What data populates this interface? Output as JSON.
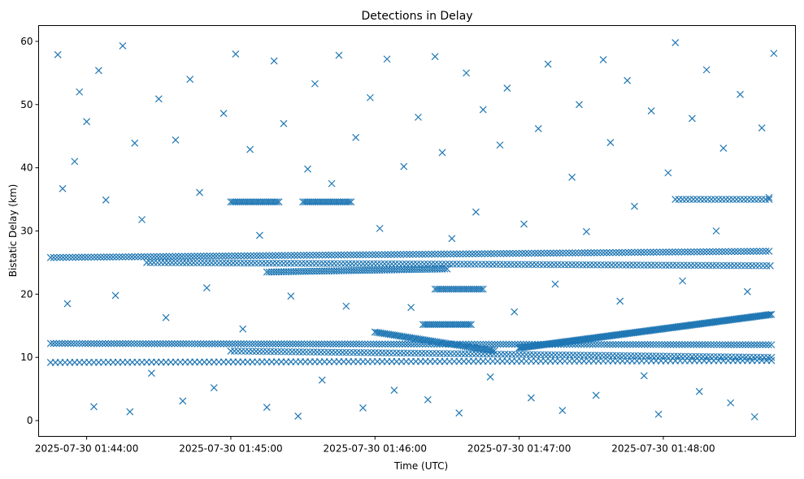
{
  "chart_data": {
    "type": "scatter",
    "title": "Detections in Delay",
    "xlabel": "Time (UTC)",
    "ylabel": "Bistatic Delay (km)",
    "marker": "x",
    "marker_color": "#1f77b4",
    "grid": false,
    "legend": "none",
    "x_ticks": [
      "2025-07-30 01:44:00",
      "2025-07-30 01:45:00",
      "2025-07-30 01:46:00",
      "2025-07-30 01:47:00",
      "2025-07-30 01:48:00"
    ],
    "y_ticks": [
      "0",
      "10",
      "20",
      "30",
      "40",
      "50",
      "60"
    ],
    "xlim": [
      "2025-07-30 01:43:40",
      "2025-07-30 01:48:55"
    ],
    "ylim": [
      -2.5,
      62.5
    ],
    "tracks": [
      {
        "start": "2025-07-30 01:43:45",
        "end": "2025-07-30 01:48:45",
        "y_start": 12.2,
        "y_end": 12.0,
        "step_seconds": 1.2
      },
      {
        "start": "2025-07-30 01:43:45",
        "end": "2025-07-30 01:48:45",
        "y_start": 25.8,
        "y_end": 26.8,
        "step_seconds": 1.3
      },
      {
        "start": "2025-07-30 01:43:45",
        "end": "2025-07-30 01:48:45",
        "y_start": 9.2,
        "y_end": 9.5,
        "step_seconds": 2.0
      },
      {
        "start": "2025-07-30 01:44:25",
        "end": "2025-07-30 01:48:45",
        "y_start": 25.0,
        "y_end": 24.5,
        "step_seconds": 1.5
      },
      {
        "start": "2025-07-30 01:45:00",
        "end": "2025-07-30 01:48:45",
        "y_start": 11.0,
        "y_end": 10.0,
        "step_seconds": 1.5
      },
      {
        "start": "2025-07-30 01:45:15",
        "end": "2025-07-30 01:46:30",
        "y_start": 23.5,
        "y_end": 24.0,
        "step_seconds": 1.0
      },
      {
        "start": "2025-07-30 01:46:00",
        "end": "2025-07-30 01:46:50",
        "y_start": 14.0,
        "y_end": 11.0,
        "step_seconds": 0.8
      },
      {
        "start": "2025-07-30 01:47:00",
        "end": "2025-07-30 01:48:45",
        "y_start": 11.5,
        "y_end": 16.8,
        "step_seconds": 0.6
      },
      {
        "start": "2025-07-30 01:45:00",
        "end": "2025-07-30 01:45:20",
        "y_start": 34.6,
        "y_end": 34.6,
        "step_seconds": 0.8
      },
      {
        "start": "2025-07-30 01:45:30",
        "end": "2025-07-30 01:45:50",
        "y_start": 34.6,
        "y_end": 34.6,
        "step_seconds": 0.8
      },
      {
        "start": "2025-07-30 01:46:25",
        "end": "2025-07-30 01:46:45",
        "y_start": 20.8,
        "y_end": 20.8,
        "step_seconds": 0.8
      },
      {
        "start": "2025-07-30 01:46:20",
        "end": "2025-07-30 01:46:40",
        "y_start": 15.2,
        "y_end": 15.2,
        "step_seconds": 0.8
      },
      {
        "start": "2025-07-30 01:48:05",
        "end": "2025-07-30 01:48:45",
        "y_start": 35.0,
        "y_end": 35.0,
        "step_seconds": 1.5
      }
    ],
    "noise_points": [
      [
        "2025-07-30 01:43:48",
        57.9
      ],
      [
        "2025-07-30 01:43:50",
        36.7
      ],
      [
        "2025-07-30 01:43:52",
        18.5
      ],
      [
        "2025-07-30 01:43:55",
        41.0
      ],
      [
        "2025-07-30 01:43:57",
        52.0
      ],
      [
        "2025-07-30 01:44:00",
        47.3
      ],
      [
        "2025-07-30 01:44:03",
        2.2
      ],
      [
        "2025-07-30 01:44:05",
        55.4
      ],
      [
        "2025-07-30 01:44:08",
        34.9
      ],
      [
        "2025-07-30 01:44:12",
        19.8
      ],
      [
        "2025-07-30 01:44:15",
        59.3
      ],
      [
        "2025-07-30 01:44:18",
        1.4
      ],
      [
        "2025-07-30 01:44:20",
        43.9
      ],
      [
        "2025-07-30 01:44:23",
        31.8
      ],
      [
        "2025-07-30 01:44:27",
        7.5
      ],
      [
        "2025-07-30 01:44:30",
        50.9
      ],
      [
        "2025-07-30 01:44:33",
        16.3
      ],
      [
        "2025-07-30 01:44:37",
        44.4
      ],
      [
        "2025-07-30 01:44:40",
        3.1
      ],
      [
        "2025-07-30 01:44:43",
        54.0
      ],
      [
        "2025-07-30 01:44:47",
        36.1
      ],
      [
        "2025-07-30 01:44:50",
        21.0
      ],
      [
        "2025-07-30 01:44:53",
        5.2
      ],
      [
        "2025-07-30 01:44:57",
        48.6
      ],
      [
        "2025-07-30 01:45:02",
        58.0
      ],
      [
        "2025-07-30 01:45:05",
        14.5
      ],
      [
        "2025-07-30 01:45:08",
        42.9
      ],
      [
        "2025-07-30 01:45:12",
        29.3
      ],
      [
        "2025-07-30 01:45:15",
        2.1
      ],
      [
        "2025-07-30 01:45:18",
        56.9
      ],
      [
        "2025-07-30 01:45:22",
        47.0
      ],
      [
        "2025-07-30 01:45:25",
        19.7
      ],
      [
        "2025-07-30 01:45:28",
        0.7
      ],
      [
        "2025-07-30 01:45:32",
        39.8
      ],
      [
        "2025-07-30 01:45:35",
        53.3
      ],
      [
        "2025-07-30 01:45:38",
        6.4
      ],
      [
        "2025-07-30 01:45:42",
        37.5
      ],
      [
        "2025-07-30 01:45:45",
        57.8
      ],
      [
        "2025-07-30 01:45:48",
        18.1
      ],
      [
        "2025-07-30 01:45:52",
        44.8
      ],
      [
        "2025-07-30 01:45:55",
        2.0
      ],
      [
        "2025-07-30 01:45:58",
        51.1
      ],
      [
        "2025-07-30 01:46:02",
        30.4
      ],
      [
        "2025-07-30 01:46:05",
        57.2
      ],
      [
        "2025-07-30 01:46:08",
        4.8
      ],
      [
        "2025-07-30 01:46:12",
        40.2
      ],
      [
        "2025-07-30 01:46:15",
        17.9
      ],
      [
        "2025-07-30 01:46:18",
        48.0
      ],
      [
        "2025-07-30 01:46:22",
        3.3
      ],
      [
        "2025-07-30 01:46:25",
        57.6
      ],
      [
        "2025-07-30 01:46:28",
        42.4
      ],
      [
        "2025-07-30 01:46:32",
        28.8
      ],
      [
        "2025-07-30 01:46:35",
        1.2
      ],
      [
        "2025-07-30 01:46:38",
        55.0
      ],
      [
        "2025-07-30 01:46:42",
        33.0
      ],
      [
        "2025-07-30 01:46:45",
        49.2
      ],
      [
        "2025-07-30 01:46:48",
        6.9
      ],
      [
        "2025-07-30 01:46:52",
        43.6
      ],
      [
        "2025-07-30 01:46:55",
        52.6
      ],
      [
        "2025-07-30 01:46:58",
        17.2
      ],
      [
        "2025-07-30 01:47:02",
        31.1
      ],
      [
        "2025-07-30 01:47:05",
        3.6
      ],
      [
        "2025-07-30 01:47:08",
        46.2
      ],
      [
        "2025-07-30 01:47:12",
        56.4
      ],
      [
        "2025-07-30 01:47:15",
        21.6
      ],
      [
        "2025-07-30 01:47:18",
        1.6
      ],
      [
        "2025-07-30 01:47:22",
        38.5
      ],
      [
        "2025-07-30 01:47:25",
        50.0
      ],
      [
        "2025-07-30 01:47:28",
        29.9
      ],
      [
        "2025-07-30 01:47:32",
        4.0
      ],
      [
        "2025-07-30 01:47:35",
        57.1
      ],
      [
        "2025-07-30 01:47:38",
        44.0
      ],
      [
        "2025-07-30 01:47:42",
        18.9
      ],
      [
        "2025-07-30 01:47:45",
        53.8
      ],
      [
        "2025-07-30 01:47:48",
        33.9
      ],
      [
        "2025-07-30 01:47:52",
        7.1
      ],
      [
        "2025-07-30 01:47:55",
        49.0
      ],
      [
        "2025-07-30 01:47:58",
        1.0
      ],
      [
        "2025-07-30 01:48:02",
        39.2
      ],
      [
        "2025-07-30 01:48:05",
        59.8
      ],
      [
        "2025-07-30 01:48:08",
        22.1
      ],
      [
        "2025-07-30 01:48:12",
        47.8
      ],
      [
        "2025-07-30 01:48:15",
        4.6
      ],
      [
        "2025-07-30 01:48:18",
        55.5
      ],
      [
        "2025-07-30 01:48:22",
        30.0
      ],
      [
        "2025-07-30 01:48:25",
        43.1
      ],
      [
        "2025-07-30 01:48:28",
        2.8
      ],
      [
        "2025-07-30 01:48:32",
        51.6
      ],
      [
        "2025-07-30 01:48:35",
        20.4
      ],
      [
        "2025-07-30 01:48:38",
        0.6
      ],
      [
        "2025-07-30 01:48:41",
        46.3
      ],
      [
        "2025-07-30 01:48:44",
        35.3
      ],
      [
        "2025-07-30 01:48:46",
        58.1
      ]
    ]
  }
}
